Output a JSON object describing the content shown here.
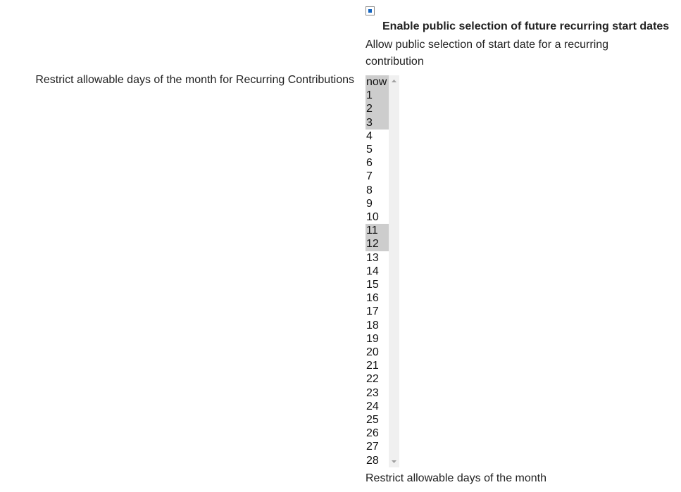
{
  "checkbox": {
    "checked": true,
    "label": "Enable public selection of future recurring start dates",
    "description": "Allow public selection of start date for a recurring contribution"
  },
  "select": {
    "label": "Restrict allowable days of the month for Recurring Contributions",
    "options": [
      {
        "label": "now",
        "selected": true
      },
      {
        "label": "1",
        "selected": true
      },
      {
        "label": "2",
        "selected": true
      },
      {
        "label": "3",
        "selected": true
      },
      {
        "label": "4",
        "selected": false
      },
      {
        "label": "5",
        "selected": false
      },
      {
        "label": "6",
        "selected": false
      },
      {
        "label": "7",
        "selected": false
      },
      {
        "label": "8",
        "selected": false
      },
      {
        "label": "9",
        "selected": false
      },
      {
        "label": "10",
        "selected": false
      },
      {
        "label": "11",
        "selected": true
      },
      {
        "label": "12",
        "selected": true
      },
      {
        "label": "13",
        "selected": false
      },
      {
        "label": "14",
        "selected": false
      },
      {
        "label": "15",
        "selected": false
      },
      {
        "label": "16",
        "selected": false
      },
      {
        "label": "17",
        "selected": false
      },
      {
        "label": "18",
        "selected": false
      },
      {
        "label": "19",
        "selected": false
      },
      {
        "label": "20",
        "selected": false
      },
      {
        "label": "21",
        "selected": false
      },
      {
        "label": "22",
        "selected": false
      },
      {
        "label": "23",
        "selected": false
      },
      {
        "label": "24",
        "selected": false
      },
      {
        "label": "25",
        "selected": false
      },
      {
        "label": "26",
        "selected": false
      },
      {
        "label": "27",
        "selected": false
      },
      {
        "label": "28",
        "selected": false
      }
    ],
    "help": "Restrict allowable days of the month"
  }
}
